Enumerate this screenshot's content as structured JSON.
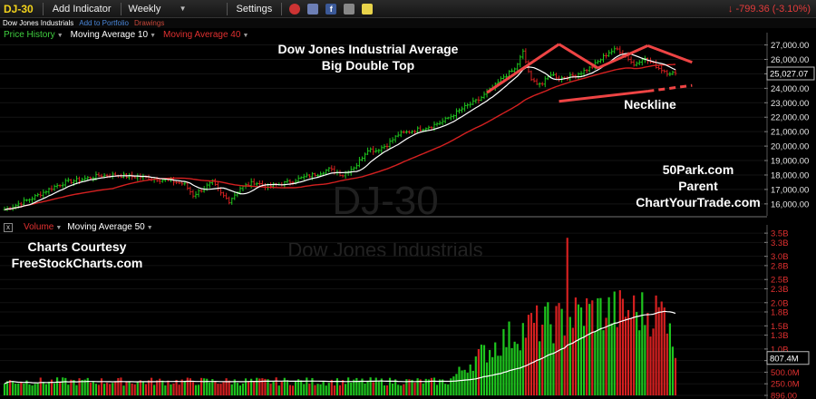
{
  "toolbar": {
    "symbol": "DJ-30",
    "add_indicator": "Add Indicator",
    "interval": "Weekly",
    "settings": "Settings",
    "change": "↓ -799.36 (-3.10%)",
    "icons": [
      "alarm-icon",
      "layers-icon",
      "facebook-icon",
      "camera-icon",
      "note-icon"
    ]
  },
  "subbar": {
    "name": "Dow Jones Industrials",
    "add_portfolio": "Add to Portfolio",
    "drawings": "Drawings"
  },
  "price_legend": {
    "price": "Price History",
    "ma10": "Moving Average 10",
    "ma40": "Moving Average 40"
  },
  "volume_legend": {
    "close": "x",
    "volume": "Volume",
    "ma50": "Moving Average 50"
  },
  "annotations": {
    "title1": "Dow Jones Industrial Average",
    "title2": "Big Double Top",
    "neckline": "Neckline",
    "site1": "50Park.com",
    "site2": "Parent",
    "site3": "ChartYourTrade.com",
    "courtesy1": "Charts Courtesy",
    "courtesy2": "FreeStockCharts.com"
  },
  "watermarks": {
    "symbol": "DJ-30",
    "name": "Dow Jones Industrials"
  },
  "colors": {
    "up": "#1ec51e",
    "down": "#d42020",
    "ma10": "#ffffff",
    "ma40": "#d42020",
    "trend": "#ee4444"
  },
  "chart_data": [
    {
      "type": "line",
      "title": "Dow Jones Industrial Average",
      "subtitle": "Big Double Top",
      "interval": "Weekly",
      "y_ticks": [
        "27,000.00",
        "26,000.00",
        "25,000.00",
        "24,000.00",
        "23,000.00",
        "22,000.00",
        "21,000.00",
        "20,000.00",
        "19,000.00",
        "18,000.00",
        "17,000.00",
        "16,000.00"
      ],
      "y_tick_values": [
        27000,
        26000,
        25000,
        24000,
        23000,
        22000,
        21000,
        20000,
        19000,
        18000,
        17000,
        16000
      ],
      "ylim": [
        15300,
        27600
      ],
      "last_value": "25,027.07",
      "last_value_num": 25027,
      "series_names": [
        "Price History",
        "Moving Average 10",
        "Moving Average 40"
      ],
      "anchors": {
        "x": [
          0,
          5,
          10,
          14,
          18,
          22,
          28,
          34,
          40,
          45,
          50,
          55,
          60,
          65,
          68,
          72,
          75,
          78,
          81,
          85,
          90,
          95,
          100,
          104,
          109,
          113,
          117,
          122,
          127,
          131,
          134,
          138,
          142,
          146,
          150,
          154,
          158,
          162,
          166,
          171,
          174,
          177,
          180,
          184,
          187,
          190,
          194,
          197,
          200,
          204,
          208,
          212,
          215,
          218,
          221,
          224,
          227,
          230,
          233,
          236,
          239,
          242
        ],
        "y": [
          15600,
          16000,
          16400,
          16800,
          17200,
          17500,
          17700,
          17950,
          18000,
          17900,
          17850,
          17700,
          17600,
          17350,
          16600,
          17100,
          17500,
          16700,
          16200,
          17100,
          17500,
          17200,
          17400,
          17600,
          17900,
          18100,
          18400,
          18000,
          18700,
          19800,
          19700,
          20100,
          20800,
          21000,
          21200,
          21400,
          21700,
          22200,
          22700,
          23200,
          23700,
          24200,
          24800,
          25300,
          26500,
          24500,
          24300,
          25000,
          24700,
          24800,
          25100,
          25500,
          26000,
          26500,
          26700,
          26300,
          25600,
          26100,
          25800,
          25400,
          25100,
          25027
        ]
      },
      "troughs_weeks": [
        68,
        81,
        190,
        197,
        242
      ],
      "peaks_weeks": [
        187,
        224
      ]
    },
    {
      "type": "bar",
      "title": "Volume",
      "series_names": [
        "Volume",
        "Moving Average 50"
      ],
      "y_ticks": [
        "3.5B",
        "3.3B",
        "3.0B",
        "2.8B",
        "2.5B",
        "2.3B",
        "2.0B",
        "1.8B",
        "1.5B",
        "1.3B",
        "1.0B",
        "750.0M",
        "500.0M",
        "250.0M",
        "896.00"
      ],
      "y_tick_values": [
        3.5,
        3.3,
        3.0,
        2.8,
        2.5,
        2.3,
        2.0,
        1.8,
        1.5,
        1.3,
        1.0,
        0.75,
        0.5,
        0.25,
        0.0
      ],
      "ylim": [
        0,
        3.6
      ],
      "units": "billions",
      "last_value": "807.4M",
      "last_value_num": 0.807,
      "anchors": {
        "x": [
          0,
          40,
          80,
          120,
          160,
          170,
          175,
          180,
          190,
          200,
          210,
          220,
          230,
          240,
          242
        ],
        "y": [
          0.3,
          0.3,
          0.3,
          0.3,
          0.3,
          0.8,
          1.0,
          1.2,
          1.5,
          1.6,
          1.8,
          1.8,
          1.8,
          1.8,
          0.8
        ]
      },
      "spike_week": 203,
      "spike_value": 3.4
    }
  ]
}
